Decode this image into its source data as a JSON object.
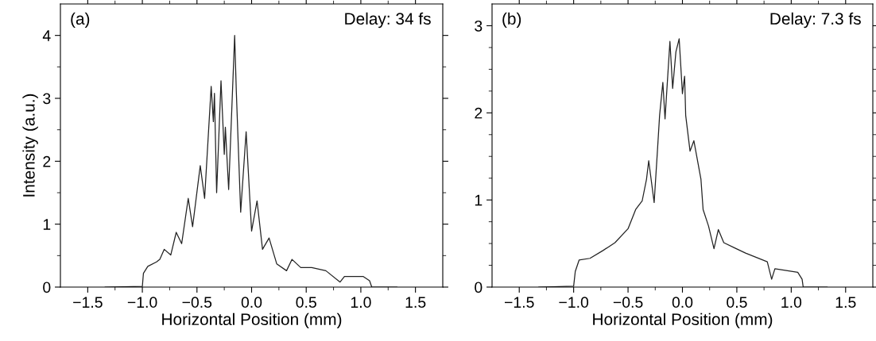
{
  "chart_data": [
    {
      "type": "line",
      "xlabel": "Horizontal Position (mm)",
      "ylabel": "Intensity (a.u.)",
      "annotations": [
        "(a)",
        "Delay: 34 fs"
      ],
      "xlim": [
        -1.75,
        1.75
      ],
      "ylim": [
        0,
        4.5
      ],
      "xticks": [
        {
          "value": -1.5,
          "label": "−1.5"
        },
        {
          "value": -1.25,
          "label": null
        },
        {
          "value": -1.0,
          "label": "−1.0"
        },
        {
          "value": -0.75,
          "label": null
        },
        {
          "value": -0.5,
          "label": "−0.5"
        },
        {
          "value": -0.25,
          "label": null
        },
        {
          "value": 0,
          "label": "0.0"
        },
        {
          "value": 0.25,
          "label": null
        },
        {
          "value": 0.5,
          "label": "0.5"
        },
        {
          "value": 0.75,
          "label": null
        },
        {
          "value": 1.0,
          "label": "1.0"
        },
        {
          "value": 1.25,
          "label": null
        },
        {
          "value": 1.5,
          "label": "1.5"
        }
      ],
      "yticks": [
        0,
        {
          "value": 0.5,
          "label": null
        },
        1,
        {
          "value": 1.5,
          "label": null
        },
        2,
        {
          "value": 2.5,
          "label": null
        },
        3,
        {
          "value": 3.5,
          "label": null
        },
        4
      ],
      "grid": false,
      "marker": "none",
      "line_style": "solid",
      "series": [
        {
          "color": "#222222",
          "x": [
            -1.34,
            -1.0,
            -0.99,
            -0.95,
            -0.87,
            -0.84,
            -0.8,
            -0.74,
            -0.69,
            -0.64,
            -0.58,
            -0.54,
            -0.47,
            -0.43,
            -0.37,
            -0.35,
            -0.34,
            -0.32,
            -0.28,
            -0.25,
            -0.24,
            -0.21,
            -0.18,
            -0.155,
            -0.14,
            -0.1,
            -0.05,
            0.0,
            0.05,
            0.1,
            0.16,
            0.23,
            0.32,
            0.37,
            0.45,
            0.55,
            0.68,
            0.81,
            0.85,
            1.02,
            1.08,
            1.1,
            1.33
          ],
          "values": [
            0,
            0.01,
            0.22,
            0.33,
            0.4,
            0.44,
            0.6,
            0.51,
            0.87,
            0.69,
            1.41,
            0.96,
            1.93,
            1.41,
            3.19,
            2.63,
            3.08,
            1.5,
            3.28,
            2.11,
            2.54,
            1.55,
            2.88,
            4.0,
            3.12,
            1.19,
            2.47,
            0.89,
            1.37,
            0.6,
            0.78,
            0.37,
            0.26,
            0.44,
            0.31,
            0.31,
            0.26,
            0.08,
            0.17,
            0.17,
            0.1,
            0.0,
            0.0
          ]
        }
      ]
    },
    {
      "type": "line",
      "xlabel": "Horizontal Position (mm)",
      "annotations": [
        "(b)",
        "Delay: 7.3 fs"
      ],
      "xlim": [
        -1.75,
        1.75
      ],
      "ylim": [
        0,
        3.25
      ],
      "xticks": [
        {
          "value": -1.5,
          "label": "−1.5"
        },
        {
          "value": -1.25,
          "label": null
        },
        {
          "value": -1.0,
          "label": "−1.0"
        },
        {
          "value": -0.75,
          "label": null
        },
        {
          "value": -0.5,
          "label": "−0.5"
        },
        {
          "value": -0.25,
          "label": null
        },
        {
          "value": 0,
          "label": "0.0"
        },
        {
          "value": 0.25,
          "label": null
        },
        {
          "value": 0.5,
          "label": "0.5"
        },
        {
          "value": 0.75,
          "label": null
        },
        {
          "value": 1.0,
          "label": "1.0"
        },
        {
          "value": 1.25,
          "label": null
        },
        {
          "value": 1.5,
          "label": "1.5"
        }
      ],
      "yticks": [
        0,
        {
          "value": 0.25,
          "label": null
        },
        {
          "value": 0.5,
          "label": null
        },
        {
          "value": 0.75,
          "label": null
        },
        1,
        {
          "value": 1.25,
          "label": null
        },
        {
          "value": 1.5,
          "label": null
        },
        {
          "value": 1.75,
          "label": null
        },
        2,
        {
          "value": 2.25,
          "label": null
        },
        {
          "value": 2.5,
          "label": null
        },
        {
          "value": 2.75,
          "label": null
        },
        3
      ],
      "grid": false,
      "marker": "none",
      "line_style": "solid",
      "series": [
        {
          "color": "#222222",
          "x": [
            -1.32,
            -1.0,
            -0.985,
            -0.95,
            -0.85,
            -0.73,
            -0.62,
            -0.5,
            -0.43,
            -0.37,
            -0.33,
            -0.31,
            -0.26,
            -0.23,
            -0.21,
            -0.18,
            -0.16,
            -0.115,
            -0.09,
            -0.06,
            -0.03,
            0.0,
            0.02,
            0.03,
            0.07,
            0.105,
            0.17,
            0.19,
            0.24,
            0.29,
            0.33,
            0.38,
            0.48,
            0.58,
            0.68,
            0.78,
            0.82,
            0.85,
            1.06,
            1.1,
            1.11,
            1.33
          ],
          "values": [
            0,
            0.01,
            0.18,
            0.31,
            0.33,
            0.42,
            0.51,
            0.67,
            0.89,
            0.99,
            1.24,
            1.45,
            0.97,
            1.56,
            1.97,
            2.35,
            1.93,
            2.82,
            2.28,
            2.7,
            2.85,
            2.22,
            2.42,
            1.97,
            1.56,
            1.68,
            1.24,
            0.89,
            0.7,
            0.44,
            0.66,
            0.51,
            0.45,
            0.39,
            0.34,
            0.29,
            0.09,
            0.21,
            0.17,
            0.09,
            0,
            0
          ]
        }
      ]
    }
  ]
}
